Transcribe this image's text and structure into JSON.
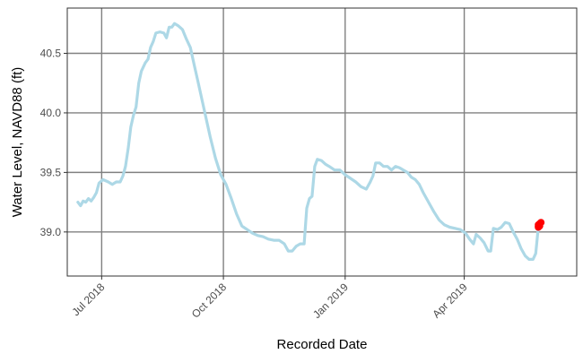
{
  "chart_data": {
    "type": "line",
    "xlabel": "Recorded Date",
    "ylabel": "Water Level, NAVD88 (ft)",
    "x_range": [
      "2018-06-05",
      "2019-06-25"
    ],
    "ylim": [
      38.63,
      40.88
    ],
    "x_ticks": [
      {
        "date": "2018-07-01",
        "label": "Jul 2018"
      },
      {
        "date": "2018-10-01",
        "label": "Oct 2018"
      },
      {
        "date": "2019-01-01",
        "label": "Jan 2019"
      },
      {
        "date": "2019-04-01",
        "label": "Apr 2019"
      }
    ],
    "y_ticks": [
      39.0,
      39.5,
      40.0,
      40.5
    ],
    "grid": true,
    "colors": {
      "line": "#add8e6",
      "highlight": "#ff0000",
      "grid": "#808080"
    },
    "series": [
      {
        "points": [
          [
            "2018-06-13",
            39.25
          ],
          [
            "2018-06-15",
            39.22
          ],
          [
            "2018-06-17",
            39.26
          ],
          [
            "2018-06-19",
            39.25
          ],
          [
            "2018-06-21",
            39.28
          ],
          [
            "2018-06-23",
            39.26
          ],
          [
            "2018-06-25",
            39.29
          ],
          [
            "2018-06-27",
            39.33
          ],
          [
            "2018-06-29",
            39.41
          ],
          [
            "2018-07-02",
            39.44
          ],
          [
            "2018-07-06",
            39.42
          ],
          [
            "2018-07-09",
            39.4
          ],
          [
            "2018-07-12",
            39.42
          ],
          [
            "2018-07-15",
            39.42
          ],
          [
            "2018-07-17",
            39.47
          ],
          [
            "2018-07-19",
            39.55
          ],
          [
            "2018-07-21",
            39.7
          ],
          [
            "2018-07-23",
            39.88
          ],
          [
            "2018-07-25",
            39.98
          ],
          [
            "2018-07-27",
            40.05
          ],
          [
            "2018-07-29",
            40.25
          ],
          [
            "2018-07-31",
            40.35
          ],
          [
            "2018-08-03",
            40.42
          ],
          [
            "2018-08-05",
            40.45
          ],
          [
            "2018-08-07",
            40.55
          ],
          [
            "2018-08-09",
            40.6
          ],
          [
            "2018-08-11",
            40.67
          ],
          [
            "2018-08-14",
            40.68
          ],
          [
            "2018-08-17",
            40.67
          ],
          [
            "2018-08-19",
            40.63
          ],
          [
            "2018-08-21",
            40.72
          ],
          [
            "2018-08-23",
            40.72
          ],
          [
            "2018-08-25",
            40.75
          ],
          [
            "2018-08-28",
            40.73
          ],
          [
            "2018-08-31",
            40.7
          ],
          [
            "2018-09-03",
            40.62
          ],
          [
            "2018-09-06",
            40.55
          ],
          [
            "2018-09-09",
            40.4
          ],
          [
            "2018-09-12",
            40.25
          ],
          [
            "2018-09-15",
            40.1
          ],
          [
            "2018-09-18",
            39.95
          ],
          [
            "2018-09-21",
            39.8
          ],
          [
            "2018-09-25",
            39.62
          ],
          [
            "2018-09-29",
            39.48
          ],
          [
            "2018-10-03",
            39.4
          ],
          [
            "2018-10-07",
            39.28
          ],
          [
            "2018-10-11",
            39.15
          ],
          [
            "2018-10-15",
            39.05
          ],
          [
            "2018-10-19",
            39.02
          ],
          [
            "2018-10-23",
            38.99
          ],
          [
            "2018-10-27",
            38.97
          ],
          [
            "2018-10-31",
            38.96
          ],
          [
            "2018-11-04",
            38.94
          ],
          [
            "2018-11-08",
            38.93
          ],
          [
            "2018-11-12",
            38.93
          ],
          [
            "2018-11-16",
            38.9
          ],
          [
            "2018-11-19",
            38.84
          ],
          [
            "2018-11-22",
            38.84
          ],
          [
            "2018-11-25",
            38.88
          ],
          [
            "2018-11-28",
            38.9
          ],
          [
            "2018-12-01",
            38.9
          ],
          [
            "2018-12-03",
            39.2
          ],
          [
            "2018-12-05",
            39.28
          ],
          [
            "2018-12-07",
            39.3
          ],
          [
            "2018-12-09",
            39.55
          ],
          [
            "2018-12-11",
            39.61
          ],
          [
            "2018-12-14",
            39.6
          ],
          [
            "2018-12-17",
            39.57
          ],
          [
            "2018-12-20",
            39.55
          ],
          [
            "2018-12-24",
            39.52
          ],
          [
            "2018-12-28",
            39.52
          ],
          [
            "2019-01-01",
            39.48
          ],
          [
            "2019-01-05",
            39.45
          ],
          [
            "2019-01-09",
            39.42
          ],
          [
            "2019-01-13",
            39.38
          ],
          [
            "2019-01-17",
            39.36
          ],
          [
            "2019-01-20",
            39.42
          ],
          [
            "2019-01-22",
            39.47
          ],
          [
            "2019-01-24",
            39.58
          ],
          [
            "2019-01-27",
            39.58
          ],
          [
            "2019-01-30",
            39.55
          ],
          [
            "2019-02-02",
            39.55
          ],
          [
            "2019-02-05",
            39.52
          ],
          [
            "2019-02-08",
            39.55
          ],
          [
            "2019-02-11",
            39.54
          ],
          [
            "2019-02-14",
            39.52
          ],
          [
            "2019-02-17",
            39.5
          ],
          [
            "2019-02-20",
            39.46
          ],
          [
            "2019-02-23",
            39.44
          ],
          [
            "2019-02-26",
            39.4
          ],
          [
            "2019-03-01",
            39.33
          ],
          [
            "2019-03-05",
            39.25
          ],
          [
            "2019-03-09",
            39.17
          ],
          [
            "2019-03-13",
            39.1
          ],
          [
            "2019-03-17",
            39.06
          ],
          [
            "2019-03-21",
            39.04
          ],
          [
            "2019-03-25",
            39.03
          ],
          [
            "2019-03-29",
            39.02
          ],
          [
            "2019-04-02",
            38.99
          ],
          [
            "2019-04-05",
            38.94
          ],
          [
            "2019-04-08",
            38.9
          ],
          [
            "2019-04-10",
            38.98
          ],
          [
            "2019-04-13",
            38.95
          ],
          [
            "2019-04-16",
            38.91
          ],
          [
            "2019-04-19",
            38.84
          ],
          [
            "2019-04-21",
            38.84
          ],
          [
            "2019-04-23",
            39.03
          ],
          [
            "2019-04-26",
            39.02
          ],
          [
            "2019-04-29",
            39.04
          ],
          [
            "2019-05-02",
            39.08
          ],
          [
            "2019-05-05",
            39.07
          ],
          [
            "2019-05-08",
            39.0
          ],
          [
            "2019-05-11",
            38.94
          ],
          [
            "2019-05-14",
            38.86
          ],
          [
            "2019-05-17",
            38.8
          ],
          [
            "2019-05-20",
            38.77
          ],
          [
            "2019-05-23",
            38.77
          ],
          [
            "2019-05-25",
            38.82
          ],
          [
            "2019-05-27",
            39.04
          ]
        ]
      }
    ],
    "highlight_points": [
      [
        "2019-05-27",
        39.04
      ],
      [
        "2019-05-27",
        39.05
      ],
      [
        "2019-05-27",
        39.06
      ],
      [
        "2019-05-28",
        39.05
      ],
      [
        "2019-05-28",
        39.07
      ],
      [
        "2019-05-29",
        39.08
      ]
    ]
  }
}
